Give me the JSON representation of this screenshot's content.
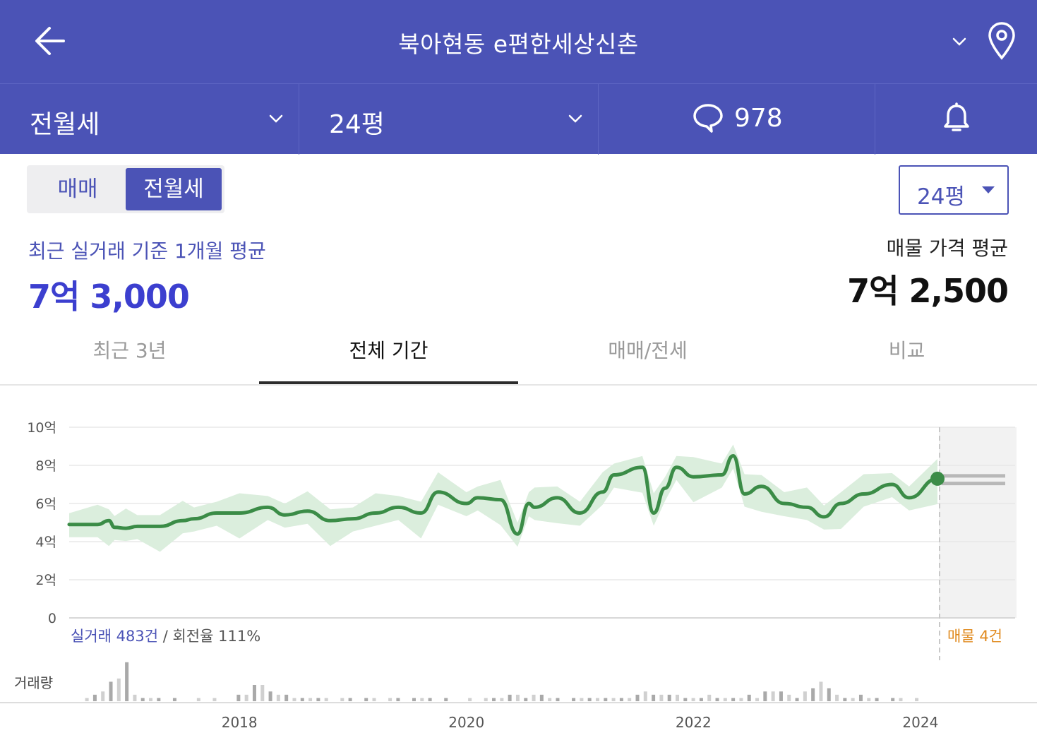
{
  "header": {
    "back_icon": "arrow-left-icon",
    "title": "북아현동 e편한세상신촌",
    "title_chevron_icon": "chevron-down-icon",
    "location_icon": "map-pin-icon",
    "background_color": "#4b53b6"
  },
  "filter_bar": {
    "deal_type": "전월세",
    "size": "24평",
    "comment_icon": "speech-bubble-icon",
    "comment_count": "978",
    "alarm_icon": "bell-icon"
  },
  "segment": {
    "options": [
      "매매",
      "전월세"
    ],
    "selected": "전월세"
  },
  "size_select": {
    "value": "24평"
  },
  "price": {
    "recent_label": "최근 실거래 기준 1개월 평균",
    "recent_value": "7억 3,000",
    "listing_label": "매물 가격 평균",
    "listing_value": "7억 2,500"
  },
  "tabs": [
    {
      "label": "최근 3년",
      "active": false
    },
    {
      "label": "전체 기간",
      "active": true
    },
    {
      "label": "매매/전세",
      "active": false
    },
    {
      "label": "비교",
      "active": false
    }
  ],
  "chart_footer": {
    "trades": "실거래 483건",
    "separator": " / ",
    "turnover": "회전율 111%",
    "listings": "매물 4건"
  },
  "chart_data": {
    "type": "line",
    "x_unit": "year",
    "y_unit": "억",
    "ylim": [
      0,
      10
    ],
    "y_ticks": [
      "0",
      "2억",
      "4억",
      "6억",
      "8억",
      "10억"
    ],
    "x_ticks": [
      "2018",
      "2020",
      "2022",
      "2024"
    ],
    "grid": true,
    "line_color": "#3b8c47",
    "band_color": "#dbeedd",
    "series": [
      {
        "x": [
          2016.5,
          2016.75,
          2016.85,
          2016.9,
          2017.0,
          2017.1,
          2017.3,
          2017.5,
          2017.6,
          2017.8,
          2018.0,
          2018.25,
          2018.4,
          2018.6,
          2018.8,
          2019.0,
          2019.2,
          2019.4,
          2019.6,
          2019.75,
          2020.0,
          2020.1,
          2020.3,
          2020.45,
          2020.55,
          2020.6,
          2020.8,
          2021.0,
          2021.2,
          2021.3,
          2021.55,
          2021.65,
          2021.75,
          2021.85,
          2022.0,
          2022.25,
          2022.35,
          2022.45,
          2022.6,
          2022.8,
          2023.0,
          2023.15,
          2023.3,
          2023.5,
          2023.75,
          2023.9,
          2024.15
        ],
        "y": [
          4.9,
          4.9,
          5.1,
          4.75,
          4.7,
          4.8,
          4.8,
          5.1,
          5.2,
          5.5,
          5.5,
          5.8,
          5.4,
          5.6,
          5.1,
          5.2,
          5.5,
          5.8,
          5.5,
          6.6,
          6.0,
          6.3,
          6.2,
          4.4,
          6.0,
          5.8,
          6.3,
          5.5,
          6.6,
          7.5,
          7.9,
          5.5,
          6.8,
          7.9,
          7.4,
          7.5,
          8.5,
          6.5,
          6.9,
          6.0,
          5.8,
          5.3,
          6.0,
          6.5,
          7.0,
          6.3,
          7.3
        ]
      }
    ],
    "endpoint": {
      "x": 2024.15,
      "y": 7.3
    },
    "listing_lines": [
      7.45,
      7.05
    ],
    "volume_label": "거래량",
    "volume": [
      0,
      0,
      1,
      2,
      3,
      6,
      7,
      12,
      2,
      1,
      1,
      1,
      0,
      1,
      0,
      0,
      1,
      0,
      1,
      0,
      0,
      2,
      2,
      5,
      5,
      3,
      2,
      2,
      1,
      1,
      1,
      1,
      1,
      0,
      1,
      1,
      0,
      1,
      1,
      0,
      1,
      1,
      0,
      1,
      1,
      1,
      0,
      1,
      0,
      0,
      1,
      0,
      1,
      1,
      1,
      2,
      2,
      1,
      2,
      2,
      1,
      1,
      0,
      1,
      1,
      1,
      1,
      1,
      1,
      1,
      1,
      2,
      3,
      2,
      2,
      2,
      2,
      1,
      1,
      1,
      2,
      1,
      1,
      1,
      1,
      2,
      1,
      3,
      3,
      3,
      2,
      1,
      3,
      4,
      6,
      4,
      2,
      1,
      1,
      2,
      1,
      1,
      0,
      1,
      1,
      0,
      1,
      0,
      0
    ]
  }
}
